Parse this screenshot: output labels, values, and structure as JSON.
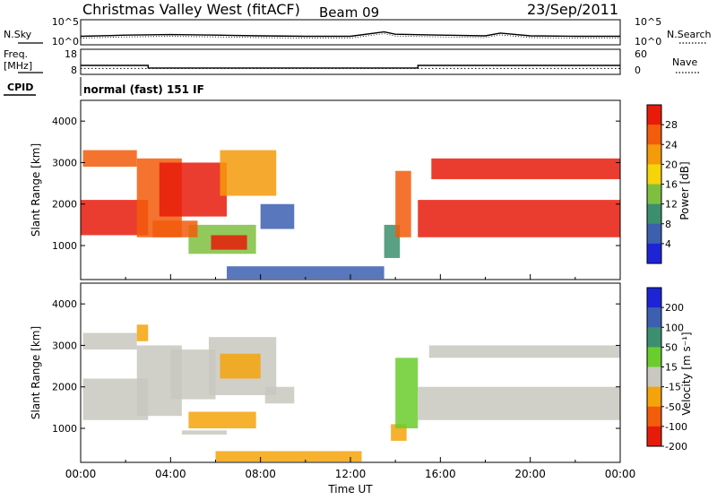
{
  "header": {
    "station": "Christmas Valley West (fitACF)",
    "beam": "Beam 09",
    "date": "23/Sep/2011"
  },
  "noise_panel": {
    "left_label": "N.Sky",
    "right_label": "N.Search",
    "left_ticks": [
      "10^5",
      "10^0"
    ],
    "right_ticks": [
      "10^5",
      "10^0"
    ]
  },
  "freq_panel": {
    "left_label_top": "Freq.",
    "left_label_bottom": "[MHz]",
    "right_label": "Nave",
    "left_ticks": [
      "18",
      "8"
    ],
    "right_ticks": [
      "60",
      "0"
    ]
  },
  "cpid": {
    "label": "CPID",
    "text": "normal (fast) 151 IF"
  },
  "chart_data": [
    {
      "type": "line",
      "title": "",
      "series": [
        {
          "name": "N.Sky",
          "x": [
            "00:00",
            "02:00",
            "04:00",
            "06:00",
            "08:00",
            "10:00",
            "12:00",
            "13:30",
            "14:00",
            "16:00",
            "18:00",
            "18:40",
            "20:00",
            "22:00",
            "24:00"
          ],
          "values": [
            30,
            60,
            80,
            60,
            40,
            30,
            30,
            400,
            100,
            60,
            40,
            200,
            40,
            30,
            30
          ]
        },
        {
          "name": "Freq",
          "x": [
            "00:00",
            "03:00",
            "03:00",
            "15:00",
            "15:00",
            "24:00"
          ],
          "values": [
            11.5,
            11.5,
            10.2,
            10.2,
            11.5,
            11.5
          ]
        },
        {
          "name": "Nave",
          "x": [
            "00:00",
            "24:00"
          ],
          "values": [
            12,
            12
          ]
        }
      ],
      "xlim": [
        "00:00",
        "24:00"
      ]
    },
    {
      "type": "heatmap",
      "panel": "Power",
      "ylabel": "Slant Range [km]",
      "ylim": [
        180,
        4500
      ],
      "yticks": [
        1000,
        2000,
        3000,
        4000
      ],
      "colorbar_label": "Power [dB]",
      "colorbar_ticks": [
        4,
        8,
        12,
        16,
        20,
        24,
        28
      ],
      "colorbar_colors": [
        "#1d24d6",
        "#3c5fb0",
        "#3c8f6e",
        "#7fbf3f",
        "#f5d40a",
        "#f59a0a",
        "#f25c0a",
        "#e81b0a"
      ]
    },
    {
      "type": "heatmap",
      "panel": "Velocity",
      "ylabel": "Slant Range [km]",
      "xlabel": "Time UT",
      "ylim": [
        180,
        4500
      ],
      "yticks": [
        1000,
        2000,
        3000,
        4000
      ],
      "xticks": [
        "00:00",
        "04:00",
        "08:00",
        "12:00",
        "16:00",
        "20:00",
        "00:00"
      ],
      "colorbar_label": "Velocity [m s⁻¹]",
      "colorbar_ticks": [
        200,
        100,
        50,
        15,
        -15,
        -50,
        -100,
        -200
      ],
      "colorbar_colors": [
        "#1d24d6",
        "#3c5fb0",
        "#3c8f6e",
        "#6acd2c",
        "#c8c8c0",
        "#f5a30a",
        "#f25c0a",
        "#e81b0a"
      ]
    }
  ]
}
